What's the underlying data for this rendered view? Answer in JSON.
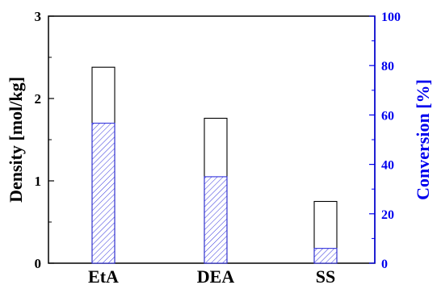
{
  "chart_data": {
    "type": "bar",
    "categories": [
      "EtA",
      "DEA",
      "SS"
    ],
    "ylabel": "Density [mol/kg]",
    "y2label": "Conversion [%]",
    "ylim": [
      0,
      3
    ],
    "y2lim": [
      0,
      100
    ],
    "yticks": [
      "0",
      "1",
      "2",
      "3"
    ],
    "y2ticks": [
      "0",
      "20",
      "40",
      "60",
      "80",
      "100"
    ],
    "series": [
      {
        "values": [
          2.38,
          1.76,
          0.75
        ],
        "axis": "left",
        "style": "open-black"
      },
      {
        "values": [
          1.7,
          1.05,
          0.18
        ],
        "axis": "left",
        "style": "hatched-blue"
      }
    ],
    "colors": {
      "left_axis": "#000000",
      "right_axis": "#0000ee",
      "hatch": "#3333dd"
    }
  }
}
